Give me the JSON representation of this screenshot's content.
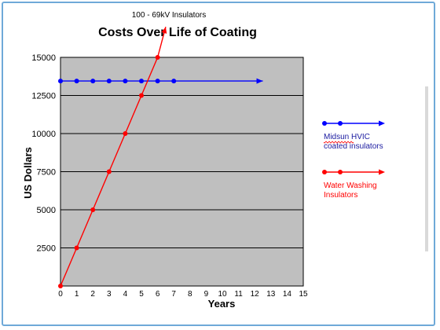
{
  "chart_data": {
    "type": "line",
    "supertitle": "100 - 69kV Insulators",
    "title": "Costs Over Life of Coating",
    "xlabel": "Years",
    "ylabel": "US Dollars",
    "xlim": [
      0,
      15
    ],
    "ylim": [
      0,
      15000
    ],
    "x_ticks": [
      0,
      1,
      2,
      3,
      4,
      5,
      6,
      7,
      8,
      9,
      10,
      11,
      12,
      13,
      14,
      15
    ],
    "y_ticks": [
      2500,
      5000,
      7500,
      10000,
      12500,
      15000
    ],
    "y_tick_labels": [
      "2500",
      "5000",
      "7500",
      "10000",
      "12500",
      "15000"
    ],
    "grid": "horizontal",
    "legend_placement": "right",
    "plot_background": "#bfbfbf",
    "series": [
      {
        "name": "Midsun HVIC coated insulators",
        "legend_lines": [
          "Midsun HVIC",
          "coated insulators"
        ],
        "color": "#0000ff",
        "label_color": "#1a1aa0",
        "arrow_to": [
          12.5,
          13450
        ],
        "points": [
          {
            "x": 0,
            "y": 13450
          },
          {
            "x": 1,
            "y": 13450
          },
          {
            "x": 2,
            "y": 13450
          },
          {
            "x": 3,
            "y": 13450
          },
          {
            "x": 4,
            "y": 13450
          },
          {
            "x": 5,
            "y": 13450
          },
          {
            "x": 6,
            "y": 13450
          },
          {
            "x": 7,
            "y": 13450
          }
        ]
      },
      {
        "name": "Water Washing Insulators",
        "legend_lines": [
          "Water Washing",
          "Insulators"
        ],
        "color": "#ff0000",
        "label_color": "#ff0000",
        "arrow_to": [
          6.5,
          17000
        ],
        "points": [
          {
            "x": 0,
            "y": 0
          },
          {
            "x": 1,
            "y": 2500
          },
          {
            "x": 2,
            "y": 5000
          },
          {
            "x": 3,
            "y": 7500
          },
          {
            "x": 4,
            "y": 10000
          },
          {
            "x": 5,
            "y": 12500
          },
          {
            "x": 6,
            "y": 15000
          }
        ]
      }
    ]
  }
}
